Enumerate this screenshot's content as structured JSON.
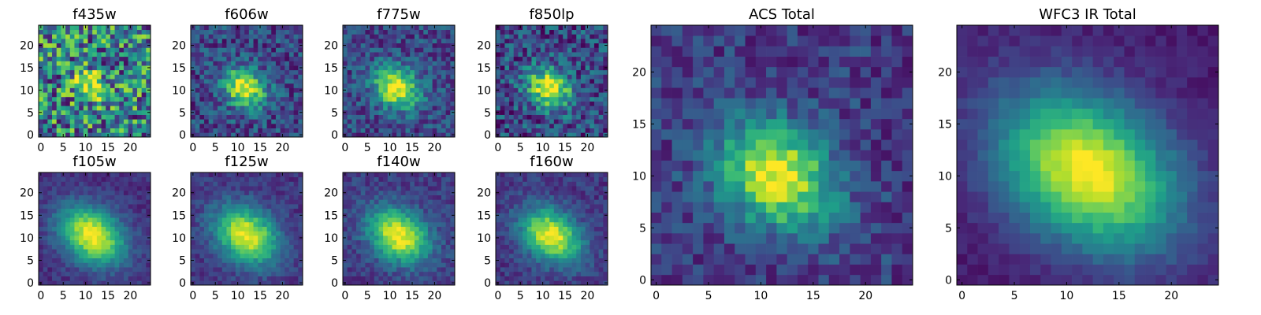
{
  "figure": {
    "colormap": "viridis",
    "colormap_stops": [
      "#440154",
      "#482878",
      "#3e4989",
      "#31688e",
      "#26828e",
      "#1f9e89",
      "#35b779",
      "#6ece58",
      "#b5de2b",
      "#fde725"
    ]
  },
  "chart_data": [
    {
      "type": "heatmap",
      "title": "f435w",
      "xlim": [
        0,
        24
      ],
      "ylim": [
        0,
        24
      ],
      "xticks": [
        0,
        5,
        10,
        15,
        20
      ],
      "yticks": [
        0,
        5,
        10,
        15,
        20
      ],
      "peak": [
        11,
        11
      ],
      "sigma": [
        2.6,
        2.0
      ],
      "angle": -0.6,
      "floor": 0.45,
      "noise": 0.42,
      "seed": 11
    },
    {
      "type": "heatmap",
      "title": "f606w",
      "xlim": [
        0,
        24
      ],
      "ylim": [
        0,
        24
      ],
      "xticks": [
        0,
        5,
        10,
        15,
        20
      ],
      "yticks": [
        0,
        5,
        10,
        15,
        20
      ],
      "peak": [
        11.5,
        10.5
      ],
      "sigma": [
        3.5,
        2.8
      ],
      "angle": -0.6,
      "floor": 0.22,
      "noise": 0.2,
      "seed": 23
    },
    {
      "type": "heatmap",
      "title": "f775w",
      "xlim": [
        0,
        24
      ],
      "ylim": [
        0,
        24
      ],
      "xticks": [
        0,
        5,
        10,
        15,
        20
      ],
      "yticks": [
        0,
        5,
        10,
        15,
        20
      ],
      "peak": [
        11.5,
        10.5
      ],
      "sigma": [
        3.8,
        3.0
      ],
      "angle": -0.6,
      "floor": 0.22,
      "noise": 0.18,
      "seed": 37
    },
    {
      "type": "heatmap",
      "title": "f850lp",
      "xlim": [
        0,
        24
      ],
      "ylim": [
        0,
        24
      ],
      "xticks": [
        0,
        5,
        10,
        15,
        20
      ],
      "yticks": [
        0,
        5,
        10,
        15,
        20
      ],
      "peak": [
        11.5,
        10.5
      ],
      "sigma": [
        3.6,
        2.9
      ],
      "angle": -0.6,
      "floor": 0.22,
      "noise": 0.24,
      "seed": 41
    },
    {
      "type": "heatmap",
      "title": "ACS Total",
      "xlim": [
        0,
        24
      ],
      "ylim": [
        0,
        24
      ],
      "xticks": [
        0,
        5,
        10,
        15,
        20
      ],
      "yticks": [
        0,
        5,
        10,
        15,
        20
      ],
      "peak": [
        11.5,
        10
      ],
      "sigma": [
        4.0,
        3.2
      ],
      "angle": -0.6,
      "floor": 0.18,
      "noise": 0.14,
      "seed": 53
    },
    {
      "type": "heatmap",
      "title": "WFC3 IR Total",
      "xlim": [
        0,
        24
      ],
      "ylim": [
        0,
        24
      ],
      "xticks": [
        0,
        5,
        10,
        15,
        20
      ],
      "yticks": [
        0,
        5,
        10,
        15,
        20
      ],
      "peak": [
        12,
        10.5
      ],
      "sigma": [
        6.5,
        4.6
      ],
      "angle": -0.6,
      "floor": 0.08,
      "noise": 0.05,
      "seed": 67
    },
    {
      "type": "heatmap",
      "title": "f105w",
      "xlim": [
        0,
        24
      ],
      "ylim": [
        0,
        24
      ],
      "xticks": [
        0,
        5,
        10,
        15,
        20
      ],
      "yticks": [
        0,
        5,
        10,
        15,
        20
      ],
      "peak": [
        11.5,
        10.5
      ],
      "sigma": [
        5.5,
        4.0
      ],
      "angle": -0.6,
      "floor": 0.14,
      "noise": 0.08,
      "seed": 71
    },
    {
      "type": "heatmap",
      "title": "f125w",
      "xlim": [
        0,
        24
      ],
      "ylim": [
        0,
        24
      ],
      "xticks": [
        0,
        5,
        10,
        15,
        20
      ],
      "yticks": [
        0,
        5,
        10,
        15,
        20
      ],
      "peak": [
        12,
        10.5
      ],
      "sigma": [
        5.3,
        3.9
      ],
      "angle": -0.6,
      "floor": 0.16,
      "noise": 0.09,
      "seed": 83
    },
    {
      "type": "heatmap",
      "title": "f140w",
      "xlim": [
        0,
        24
      ],
      "ylim": [
        0,
        24
      ],
      "xticks": [
        0,
        5,
        10,
        15,
        20
      ],
      "yticks": [
        0,
        5,
        10,
        15,
        20
      ],
      "peak": [
        12,
        10.5
      ],
      "sigma": [
        5.0,
        3.7
      ],
      "angle": -0.6,
      "floor": 0.18,
      "noise": 0.1,
      "seed": 97
    },
    {
      "type": "heatmap",
      "title": "f160w",
      "xlim": [
        0,
        24
      ],
      "ylim": [
        0,
        24
      ],
      "xticks": [
        0,
        5,
        10,
        15,
        20
      ],
      "yticks": [
        0,
        5,
        10,
        15,
        20
      ],
      "peak": [
        12,
        10.5
      ],
      "sigma": [
        4.9,
        3.6
      ],
      "angle": -0.6,
      "floor": 0.17,
      "noise": 0.1,
      "seed": 101
    }
  ]
}
